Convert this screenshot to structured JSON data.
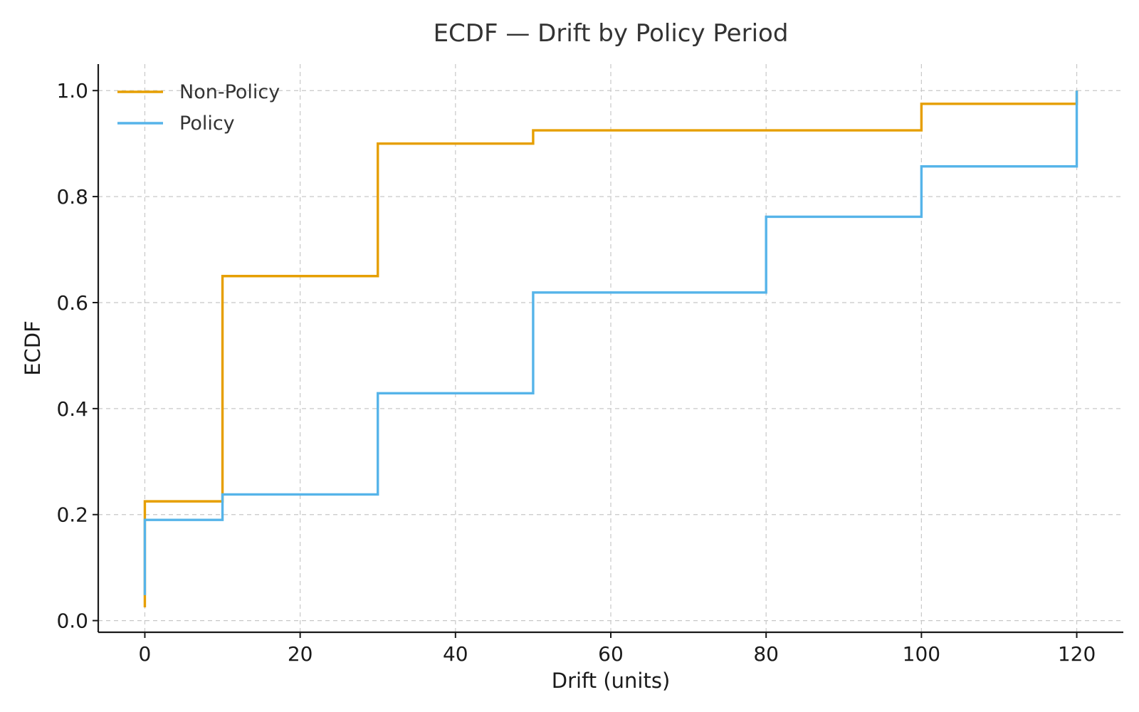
{
  "chart_data": {
    "type": "line",
    "step": true,
    "title": "ECDF — Drift by Policy Period",
    "xlabel": "Drift (units)",
    "ylabel": "ECDF",
    "xlim": [
      -6,
      126
    ],
    "ylim": [
      -0.022,
      1.05
    ],
    "xticks": [
      0,
      20,
      40,
      60,
      80,
      100,
      120
    ],
    "yticks": [
      0.0,
      0.2,
      0.4,
      0.6,
      0.8,
      1.0
    ],
    "xtick_labels": [
      "0",
      "20",
      "40",
      "60",
      "80",
      "100",
      "120"
    ],
    "ytick_labels": [
      "0.0",
      "0.2",
      "0.4",
      "0.6",
      "0.8",
      "1.0"
    ],
    "grid": true,
    "legend_position": "top-left",
    "series": [
      {
        "name": "Non-Policy",
        "color": "#E69F00",
        "x": [
          0,
          0,
          10,
          30,
          50,
          100,
          120
        ],
        "y": [
          0.025,
          0.225,
          0.65,
          0.9,
          0.925,
          0.975,
          1.0
        ]
      },
      {
        "name": "Policy",
        "color": "#56B4E9",
        "x": [
          0,
          0,
          10,
          30,
          50,
          80,
          100,
          120
        ],
        "y": [
          0.048,
          0.19,
          0.238,
          0.429,
          0.619,
          0.762,
          0.857,
          1.0
        ]
      }
    ]
  }
}
